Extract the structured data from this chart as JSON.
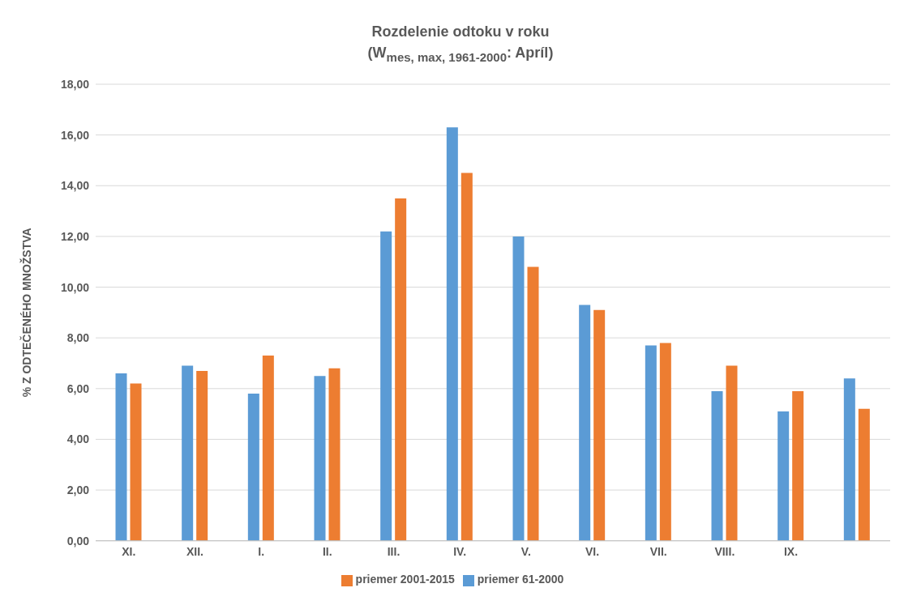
{
  "chart_data": {
    "type": "bar",
    "title": "Rozdelenie odtoku v roku",
    "subtitle": "(W$_{mes, max, 1961-2000}$:  Apríl)",
    "ylabel": "% Z  ODTEČENÉHO MNOŽSTVA",
    "categories": [
      "XI.",
      "XII.",
      "I.",
      "II.",
      "III.",
      "IV.",
      "V.",
      "VI.",
      "VII.",
      "VIII.",
      "IX.",
      null
    ],
    "series": [
      {
        "name": "priemer 61-2000",
        "color": "#5b9bd5",
        "values": [
          6.6,
          6.9,
          5.8,
          6.5,
          12.2,
          16.3,
          12.0,
          9.3,
          7.7,
          5.9,
          5.1,
          6.4
        ]
      },
      {
        "name": "priemer 2001-2015",
        "color": "#ed7d31",
        "values": [
          6.2,
          6.7,
          7.3,
          6.8,
          13.5,
          14.5,
          10.8,
          9.1,
          7.8,
          6.9,
          5.9,
          5.2
        ]
      }
    ],
    "ylim": [
      0,
      18
    ],
    "yticks": [
      {
        "value": 0,
        "label": "0,00"
      },
      {
        "value": 2,
        "label": "2,00"
      },
      {
        "value": 4,
        "label": "4,00"
      },
      {
        "value": 6,
        "label": "6,00"
      },
      {
        "value": 8,
        "label": "8,00"
      },
      {
        "value": 10,
        "label": "10,00"
      },
      {
        "value": 12,
        "label": "12,00"
      },
      {
        "value": 14,
        "label": "14,00"
      },
      {
        "value": 16,
        "label": "16,00"
      },
      {
        "value": 18,
        "label": "18,00"
      }
    ],
    "grid": "y",
    "legend": "bottom"
  }
}
